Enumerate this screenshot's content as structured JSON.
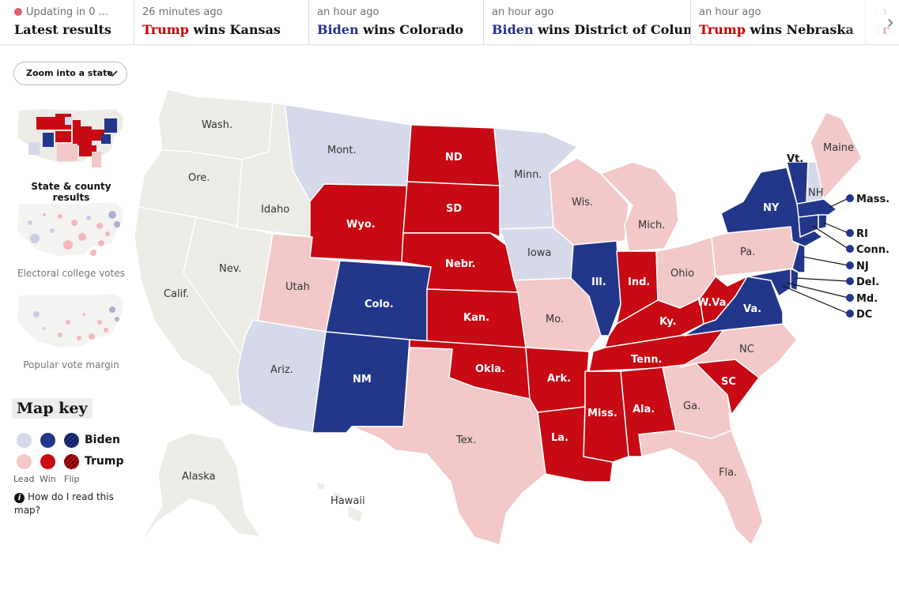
{
  "ticker": {
    "items": [
      {
        "time": "Updating in 0 ...",
        "winner": "",
        "text": "Latest results"
      },
      {
        "time": "26 minutes ago",
        "winner": "Trump",
        "text": " wins Kansas"
      },
      {
        "time": "an hour ago",
        "winner": "Biden",
        "text": " wins Colorado"
      },
      {
        "time": "an hour ago",
        "winner": "Biden",
        "text": " wins District of Columbia"
      },
      {
        "time": "an hour ago",
        "winner": "Trump",
        "text": " wins Nebraska"
      },
      {
        "time": "an",
        "winner": "Tr",
        "text": ""
      }
    ],
    "next_icon": "chevron-right-icon"
  },
  "zoom": {
    "label": "Zoom into a state",
    "icon": "chevron-down-icon"
  },
  "views": [
    {
      "label": "State & county results",
      "active": true
    },
    {
      "label": "Electoral college votes",
      "active": false
    },
    {
      "label": "Popular vote margin",
      "active": false
    }
  ],
  "key": {
    "title": "Map key",
    "biden": "Biden",
    "trump": "Trump",
    "lead": "Lead",
    "win": "Win",
    "flip": "Flip",
    "help": "How do I read this map?",
    "help_icon": "info-icon"
  },
  "colors": {
    "biden_win": "#22368a",
    "biden_lead": "#d5d9ea",
    "trump_win": "#c70a13",
    "trump_lead": "#f2c8c9",
    "no_result": "#ecebe6"
  },
  "states": {
    "wa": "Wash.",
    "or": "Ore.",
    "ca": "Calif.",
    "nv": "Nev.",
    "id": "Idaho",
    "mt": "Mont.",
    "wy": "Wyo.",
    "ut": "Utah",
    "co": "Colo.",
    "az": "Ariz.",
    "nm": "NM",
    "nd": "ND",
    "sd": "SD",
    "ne": "Nebr.",
    "ks": "Kan.",
    "ok": "Okla.",
    "tx": "Tex.",
    "mn": "Minn.",
    "ia": "Iowa",
    "mo": "Mo.",
    "ar": "Ark.",
    "la": "La.",
    "wi": "Wis.",
    "il": "Ill.",
    "mi": "Mich.",
    "in": "Ind.",
    "oh": "Ohio",
    "ky": "Ky.",
    "tn": "Tenn.",
    "ms": "Miss.",
    "al": "Ala.",
    "ga": "Ga.",
    "fl": "Fla.",
    "sc": "SC",
    "nc": "NC",
    "va": "Va.",
    "wv": "W.Va.",
    "pa": "Pa.",
    "ny": "NY",
    "vt": "Vt.",
    "nh": "NH",
    "me": "Maine",
    "ak": "Alaska",
    "hi": "Hawaii"
  },
  "callouts": [
    "Mass.",
    "RI",
    "Conn.",
    "NJ",
    "Del.",
    "Md.",
    "DC"
  ]
}
